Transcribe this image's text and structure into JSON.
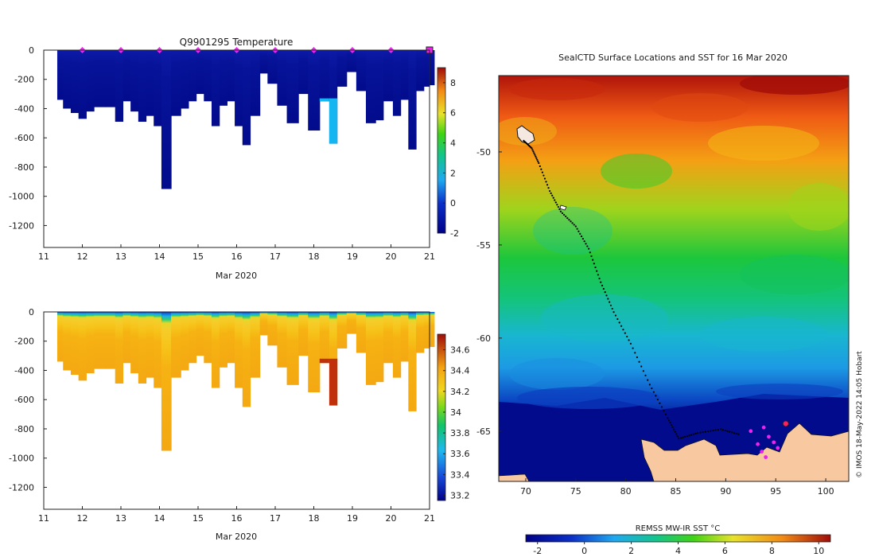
{
  "chart_data": [
    {
      "id": "temp_section",
      "type": "heatmap",
      "title": "Q9901295  Temperature",
      "xlabel": "Mar 2020",
      "ylabel": "",
      "x_ticks": [
        "11",
        "12",
        "13",
        "14",
        "15",
        "16",
        "17",
        "18",
        "19",
        "20",
        "21"
      ],
      "xlim": [
        11,
        21
      ],
      "y_ticks": [
        "0",
        "-200",
        "-400",
        "-600",
        "-800",
        "-1000",
        "-1200"
      ],
      "ylim": [
        -1350,
        0
      ],
      "profile_markers_day": [
        12,
        13,
        14,
        15,
        16,
        17,
        18,
        19,
        20
      ],
      "last_marker_day": 21,
      "colorbar": {
        "ticks": [
          "-2",
          "0",
          "2",
          "4",
          "6",
          "8"
        ],
        "range": [
          -2,
          9
        ]
      },
      "profiles": [
        {
          "day": 11.35,
          "depth": 340
        },
        {
          "day": 11.5,
          "depth": 400
        },
        {
          "day": 11.7,
          "depth": 430
        },
        {
          "day": 11.9,
          "depth": 470
        },
        {
          "day": 12.1,
          "depth": 420
        },
        {
          "day": 12.3,
          "depth": 390
        },
        {
          "day": 12.6,
          "depth": 390
        },
        {
          "day": 12.85,
          "depth": 490
        },
        {
          "day": 13.05,
          "depth": 350
        },
        {
          "day": 13.25,
          "depth": 420
        },
        {
          "day": 13.45,
          "depth": 490
        },
        {
          "day": 13.65,
          "depth": 450
        },
        {
          "day": 13.85,
          "depth": 520
        },
        {
          "day": 14.05,
          "depth": 950
        },
        {
          "day": 14.3,
          "depth": 450
        },
        {
          "day": 14.55,
          "depth": 400
        },
        {
          "day": 14.75,
          "depth": 350
        },
        {
          "day": 14.95,
          "depth": 300
        },
        {
          "day": 15.15,
          "depth": 350
        },
        {
          "day": 15.35,
          "depth": 520
        },
        {
          "day": 15.55,
          "depth": 380
        },
        {
          "day": 15.75,
          "depth": 350
        },
        {
          "day": 15.95,
          "depth": 520
        },
        {
          "day": 16.15,
          "depth": 650
        },
        {
          "day": 16.35,
          "depth": 450
        },
        {
          "day": 16.6,
          "depth": 160
        },
        {
          "day": 16.8,
          "depth": 230
        },
        {
          "day": 17.05,
          "depth": 380
        },
        {
          "day": 17.3,
          "depth": 500
        },
        {
          "day": 17.6,
          "depth": 300
        },
        {
          "day": 17.85,
          "depth": 550
        },
        {
          "day": 18.15,
          "depth": 350
        },
        {
          "day": 18.4,
          "depth": 640
        },
        {
          "day": 18.6,
          "depth": 250
        },
        {
          "day": 18.85,
          "depth": 150
        },
        {
          "day": 19.1,
          "depth": 280
        },
        {
          "day": 19.35,
          "depth": 500
        },
        {
          "day": 19.6,
          "depth": 480
        },
        {
          "day": 19.8,
          "depth": 350
        },
        {
          "day": 20.05,
          "depth": 450
        },
        {
          "day": 20.25,
          "depth": 340
        },
        {
          "day": 20.45,
          "depth": 680
        },
        {
          "day": 20.65,
          "depth": 280
        },
        {
          "day": 20.85,
          "depth": 250
        },
        {
          "day": 21.0,
          "depth": 240
        }
      ]
    },
    {
      "id": "salinity_section",
      "type": "heatmap",
      "title": "",
      "xlabel": "Mar 2020",
      "x_ticks": [
        "11",
        "12",
        "13",
        "14",
        "15",
        "16",
        "17",
        "18",
        "19",
        "20",
        "21"
      ],
      "xlim": [
        11,
        21
      ],
      "y_ticks": [
        "0",
        "-200",
        "-400",
        "-600",
        "-800",
        "-1000",
        "-1200"
      ],
      "ylim": [
        -1350,
        0
      ],
      "colorbar": {
        "ticks": [
          "33.2",
          "33.4",
          "33.6",
          "33.8",
          "34",
          "34.2",
          "34.4",
          "34.6"
        ],
        "range": [
          33.15,
          34.75
        ]
      }
    },
    {
      "id": "sst_map",
      "type": "heatmap",
      "title": "SealCTD Surface Locations and SST for 16 Mar 2020",
      "x_ticks": [
        "70",
        "75",
        "80",
        "85",
        "90",
        "95",
        "100"
      ],
      "xlim": [
        67.3,
        102.3
      ],
      "y_ticks": [
        "-50",
        "-55",
        "-60",
        "-65"
      ],
      "ylim": [
        -67.7,
        -45.9
      ],
      "colorbar_label": "REMSS MW-IR SST °C",
      "colorbar": {
        "ticks": [
          "-2",
          "0",
          "2",
          "4",
          "6",
          "8",
          "10"
        ],
        "range": [
          -2.5,
          10.5
        ]
      },
      "credit": "© IMOS 18-May-2022 14:05 Hobart",
      "track": [
        [
          69.8,
          -49.4
        ],
        [
          70.6,
          -49.8
        ],
        [
          71.3,
          -50.6
        ],
        [
          72.4,
          -52.1
        ],
        [
          73.5,
          -53.2
        ],
        [
          75.0,
          -54.0
        ],
        [
          76.3,
          -55.2
        ],
        [
          77.5,
          -57.0
        ],
        [
          78.8,
          -58.6
        ],
        [
          80.5,
          -60.3
        ],
        [
          82.4,
          -62.5
        ],
        [
          84.2,
          -64.3
        ],
        [
          85.3,
          -65.4
        ],
        [
          87.2,
          -65.1
        ],
        [
          89.5,
          -64.9
        ],
        [
          91.5,
          -65.2
        ]
      ],
      "surface_points": [
        [
          93.8,
          -64.8
        ],
        [
          92.5,
          -65.0
        ],
        [
          94.3,
          -65.3
        ],
        [
          93.2,
          -65.7
        ],
        [
          94.8,
          -65.6
        ],
        [
          93.6,
          -66.1
        ],
        [
          95.2,
          -65.9
        ],
        [
          94.0,
          -66.4
        ]
      ],
      "latest_point": [
        96.0,
        -64.6
      ]
    }
  ]
}
